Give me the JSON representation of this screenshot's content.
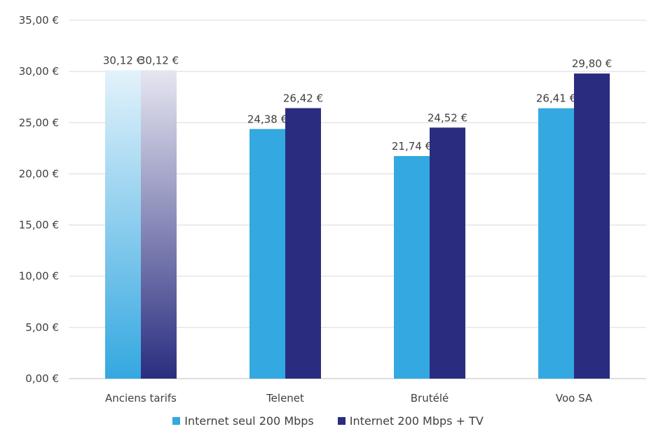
{
  "chart_data": {
    "type": "bar",
    "categories": [
      "Anciens tarifs",
      "Telenet",
      "Brutélé",
      "Voo SA"
    ],
    "series": [
      {
        "name": "Internet seul 200 Mbps",
        "color": "#34A8E0",
        "values": [
          30.12,
          24.38,
          21.74,
          26.41
        ],
        "labels": [
          "30,12 €",
          "24,38 €",
          "21,74 €",
          "26,41 €"
        ]
      },
      {
        "name": "Internet 200 Mbps + TV",
        "color": "#2A2D7F",
        "values": [
          30.12,
          26.42,
          24.52,
          29.8
        ],
        "labels": [
          "30,12 €",
          "26,42 €",
          "24,52 €",
          "29,80 €"
        ]
      }
    ],
    "gradient_first_category": true,
    "ylim": [
      0,
      35
    ],
    "yticks": [
      "0,00 €",
      "5,00 €",
      "10,00 €",
      "15,00 €",
      "20,00 €",
      "25,00 €",
      "30,00 €",
      "35,00 €"
    ],
    "grid": true,
    "legend_position": "bottom",
    "title": "",
    "xlabel": "",
    "ylabel": ""
  }
}
